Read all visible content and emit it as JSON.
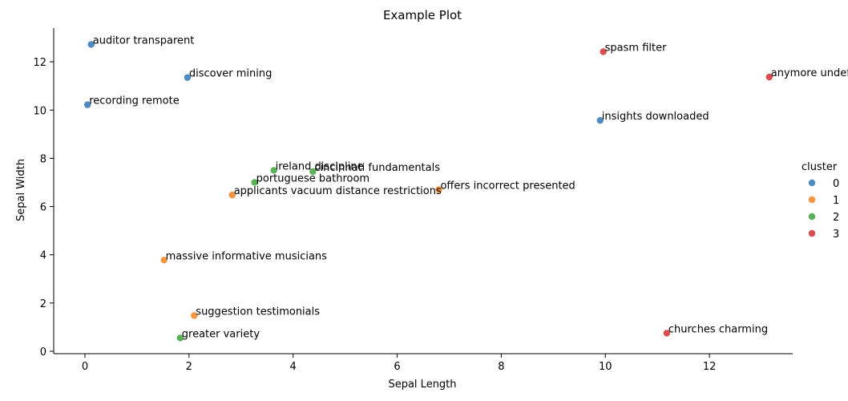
{
  "chart_data": {
    "type": "scatter",
    "title": "Example Plot",
    "xlabel": "Sepal Length",
    "ylabel": "Sepal Width",
    "xlim": [
      -0.6,
      13.6
    ],
    "ylim": [
      -0.1,
      13.4
    ],
    "xticks": [
      0,
      2,
      4,
      6,
      8,
      10,
      12
    ],
    "yticks": [
      0,
      2,
      4,
      6,
      8,
      10,
      12
    ],
    "legend": {
      "title": "cluster",
      "position": "right",
      "entries": [
        {
          "label": "0",
          "color": "#3a7ebb"
        },
        {
          "label": "1",
          "color": "#f58b2b"
        },
        {
          "label": "2",
          "color": "#48a845"
        },
        {
          "label": "3",
          "color": "#d53b3b"
        }
      ]
    },
    "series": [
      {
        "name": "0",
        "color": "#3a7ebb",
        "points": [
          {
            "x": 0.12,
            "y": 12.72,
            "label": "auditor transparent"
          },
          {
            "x": 1.97,
            "y": 11.35,
            "label": "discover mining"
          },
          {
            "x": 0.05,
            "y": 10.22,
            "label": "recording remote"
          },
          {
            "x": 9.9,
            "y": 9.57,
            "label": "insights downloaded"
          }
        ]
      },
      {
        "name": "1",
        "color": "#f58b2b",
        "points": [
          {
            "x": 2.83,
            "y": 6.48,
            "label": "applicants vacuum distance restrictions"
          },
          {
            "x": 6.8,
            "y": 6.7,
            "label": "offers incorrect presented"
          },
          {
            "x": 1.52,
            "y": 3.78,
            "label": "massive informative musicians"
          },
          {
            "x": 2.1,
            "y": 1.48,
            "label": "suggestion testimonials"
          }
        ]
      },
      {
        "name": "2",
        "color": "#48a845",
        "points": [
          {
            "x": 3.63,
            "y": 7.5,
            "label": "ireland discipline"
          },
          {
            "x": 4.38,
            "y": 7.45,
            "label": "cincinnati fundamentals"
          },
          {
            "x": 3.26,
            "y": 7.0,
            "label": "portuguese bathroom"
          },
          {
            "x": 1.83,
            "y": 0.55,
            "label": "greater variety"
          }
        ]
      },
      {
        "name": "3",
        "color": "#d53b3b",
        "points": [
          {
            "x": 9.96,
            "y": 12.42,
            "label": "spasm filter"
          },
          {
            "x": 13.15,
            "y": 11.37,
            "label": "anymore undefi"
          },
          {
            "x": 11.18,
            "y": 0.75,
            "label": "churches charming"
          }
        ]
      }
    ]
  }
}
